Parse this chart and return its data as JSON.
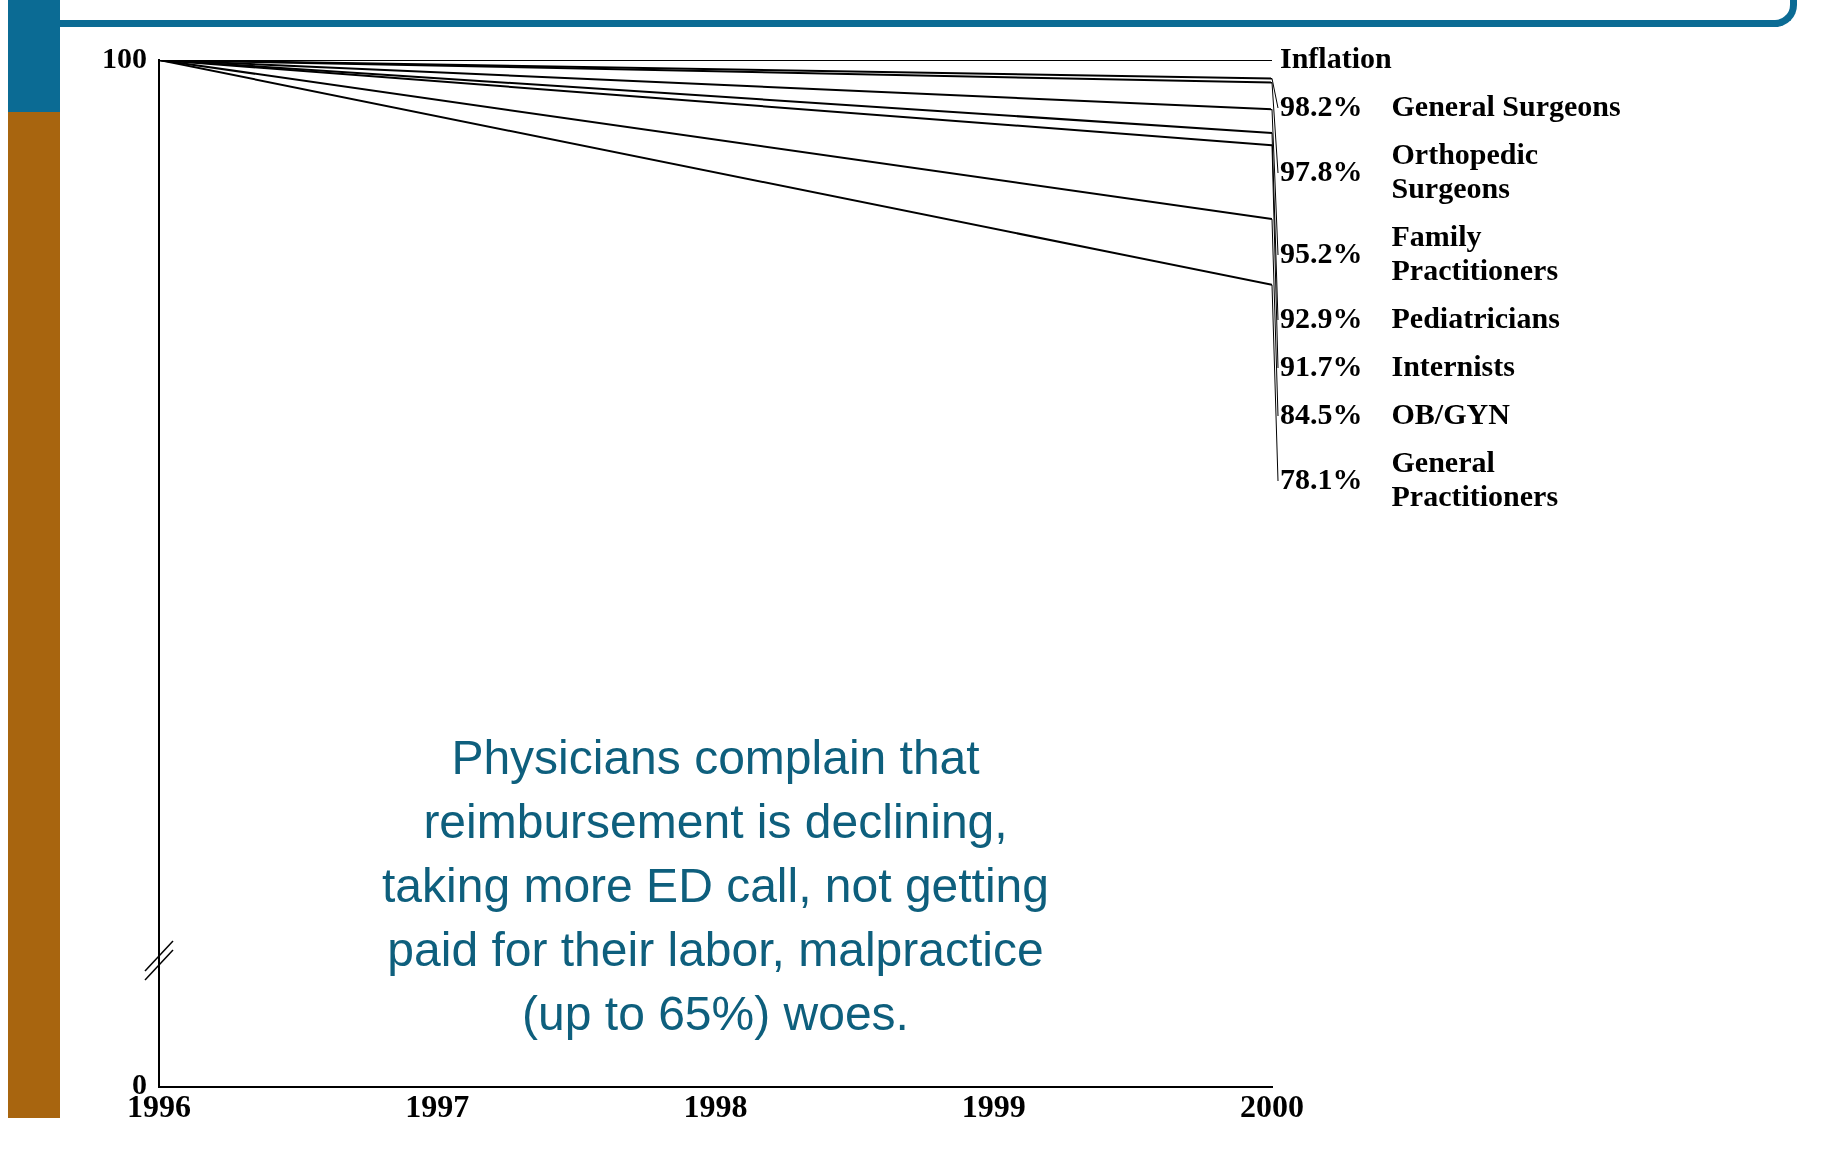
{
  "chart_data": {
    "type": "line",
    "x": [
      1996,
      2000
    ],
    "xlim": [
      1996,
      2000
    ],
    "xticks": [
      1996,
      1997,
      1998,
      1999,
      2000
    ],
    "ylim": [
      0,
      100
    ],
    "yticks": [
      0,
      100
    ],
    "grid": false,
    "legend": false,
    "marker": "none",
    "line_style": "solid",
    "series": [
      {
        "name": "Inflation",
        "color": "#000000",
        "values": [
          100,
          100
        ]
      },
      {
        "name": "General Surgeons",
        "color": "#000000",
        "values": [
          100,
          98.2
        ],
        "value_labels": [
          null,
          "98.2%"
        ]
      },
      {
        "name": "Orthopedic Surgeons",
        "color": "#000000",
        "values": [
          100,
          97.8
        ],
        "value_labels": [
          null,
          "97.8%"
        ]
      },
      {
        "name": "Family Practitioners",
        "color": "#000000",
        "values": [
          100,
          95.2
        ],
        "value_labels": [
          null,
          "95.2%"
        ]
      },
      {
        "name": "Pediatricians",
        "color": "#000000",
        "values": [
          100,
          92.9
        ],
        "value_labels": [
          null,
          "92.9%"
        ]
      },
      {
        "name": "Internists",
        "color": "#000000",
        "values": [
          100,
          91.7
        ],
        "value_labels": [
          null,
          "91.7%"
        ]
      },
      {
        "name": "OB/GYN",
        "color": "#000000",
        "values": [
          100,
          84.5
        ],
        "value_labels": [
          null,
          "84.5%"
        ]
      },
      {
        "name": "General Practitioners",
        "color": "#000000",
        "values": [
          100,
          78.1
        ],
        "value_labels": [
          null,
          "78.1%"
        ]
      }
    ],
    "annotations": [
      "Physicians complain that reimbursement is declining, taking more ED call, not getting paid for their labor, malpractice (up to 65%) woes."
    ]
  }
}
